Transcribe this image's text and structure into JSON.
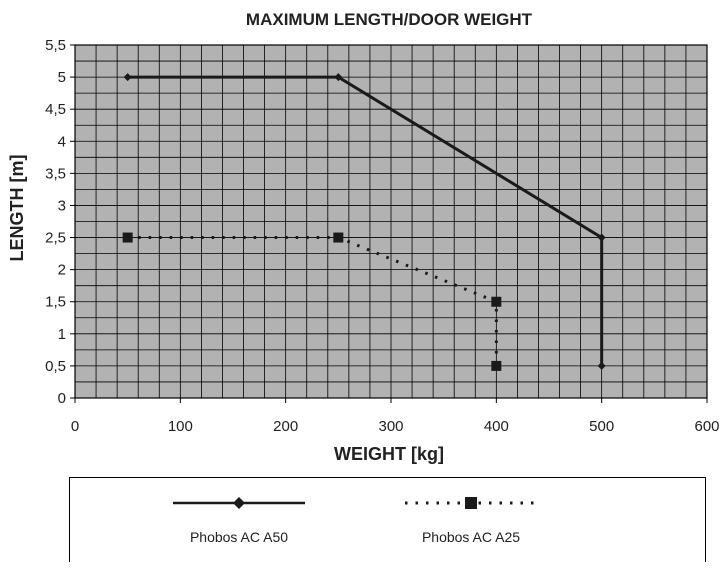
{
  "chart_data": {
    "type": "line",
    "title": "MAXIMUM LENGTH/DOOR WEIGHT",
    "xlabel": "WEIGHT [kg]",
    "ylabel": "LENGTH [m]",
    "xlim": [
      0,
      600
    ],
    "ylim": [
      0,
      5.5
    ],
    "xticks": [
      "0",
      "100",
      "200",
      "300",
      "400",
      "500",
      "600"
    ],
    "yticks": [
      "0",
      "0,5",
      "1",
      "1,5",
      "2",
      "2,5",
      "3",
      "3,5",
      "4",
      "4,5",
      "5",
      "5,5"
    ],
    "grid": true,
    "legend_position": "bottom",
    "series": [
      {
        "name": "Phobos AC A50",
        "style": "solid",
        "marker": "diamond",
        "x": [
          50,
          250,
          500,
          500
        ],
        "y": [
          5,
          5,
          2.5,
          0.5
        ]
      },
      {
        "name": "Phobos AC A25",
        "style": "dotted",
        "marker": "square",
        "x": [
          50,
          250,
          400,
          400
        ],
        "y": [
          2.5,
          2.5,
          1.5,
          0.5
        ]
      }
    ]
  },
  "colors": {
    "plot_background": "#b2b2b2",
    "grid": "#000000",
    "series": "#1a1a1a"
  }
}
